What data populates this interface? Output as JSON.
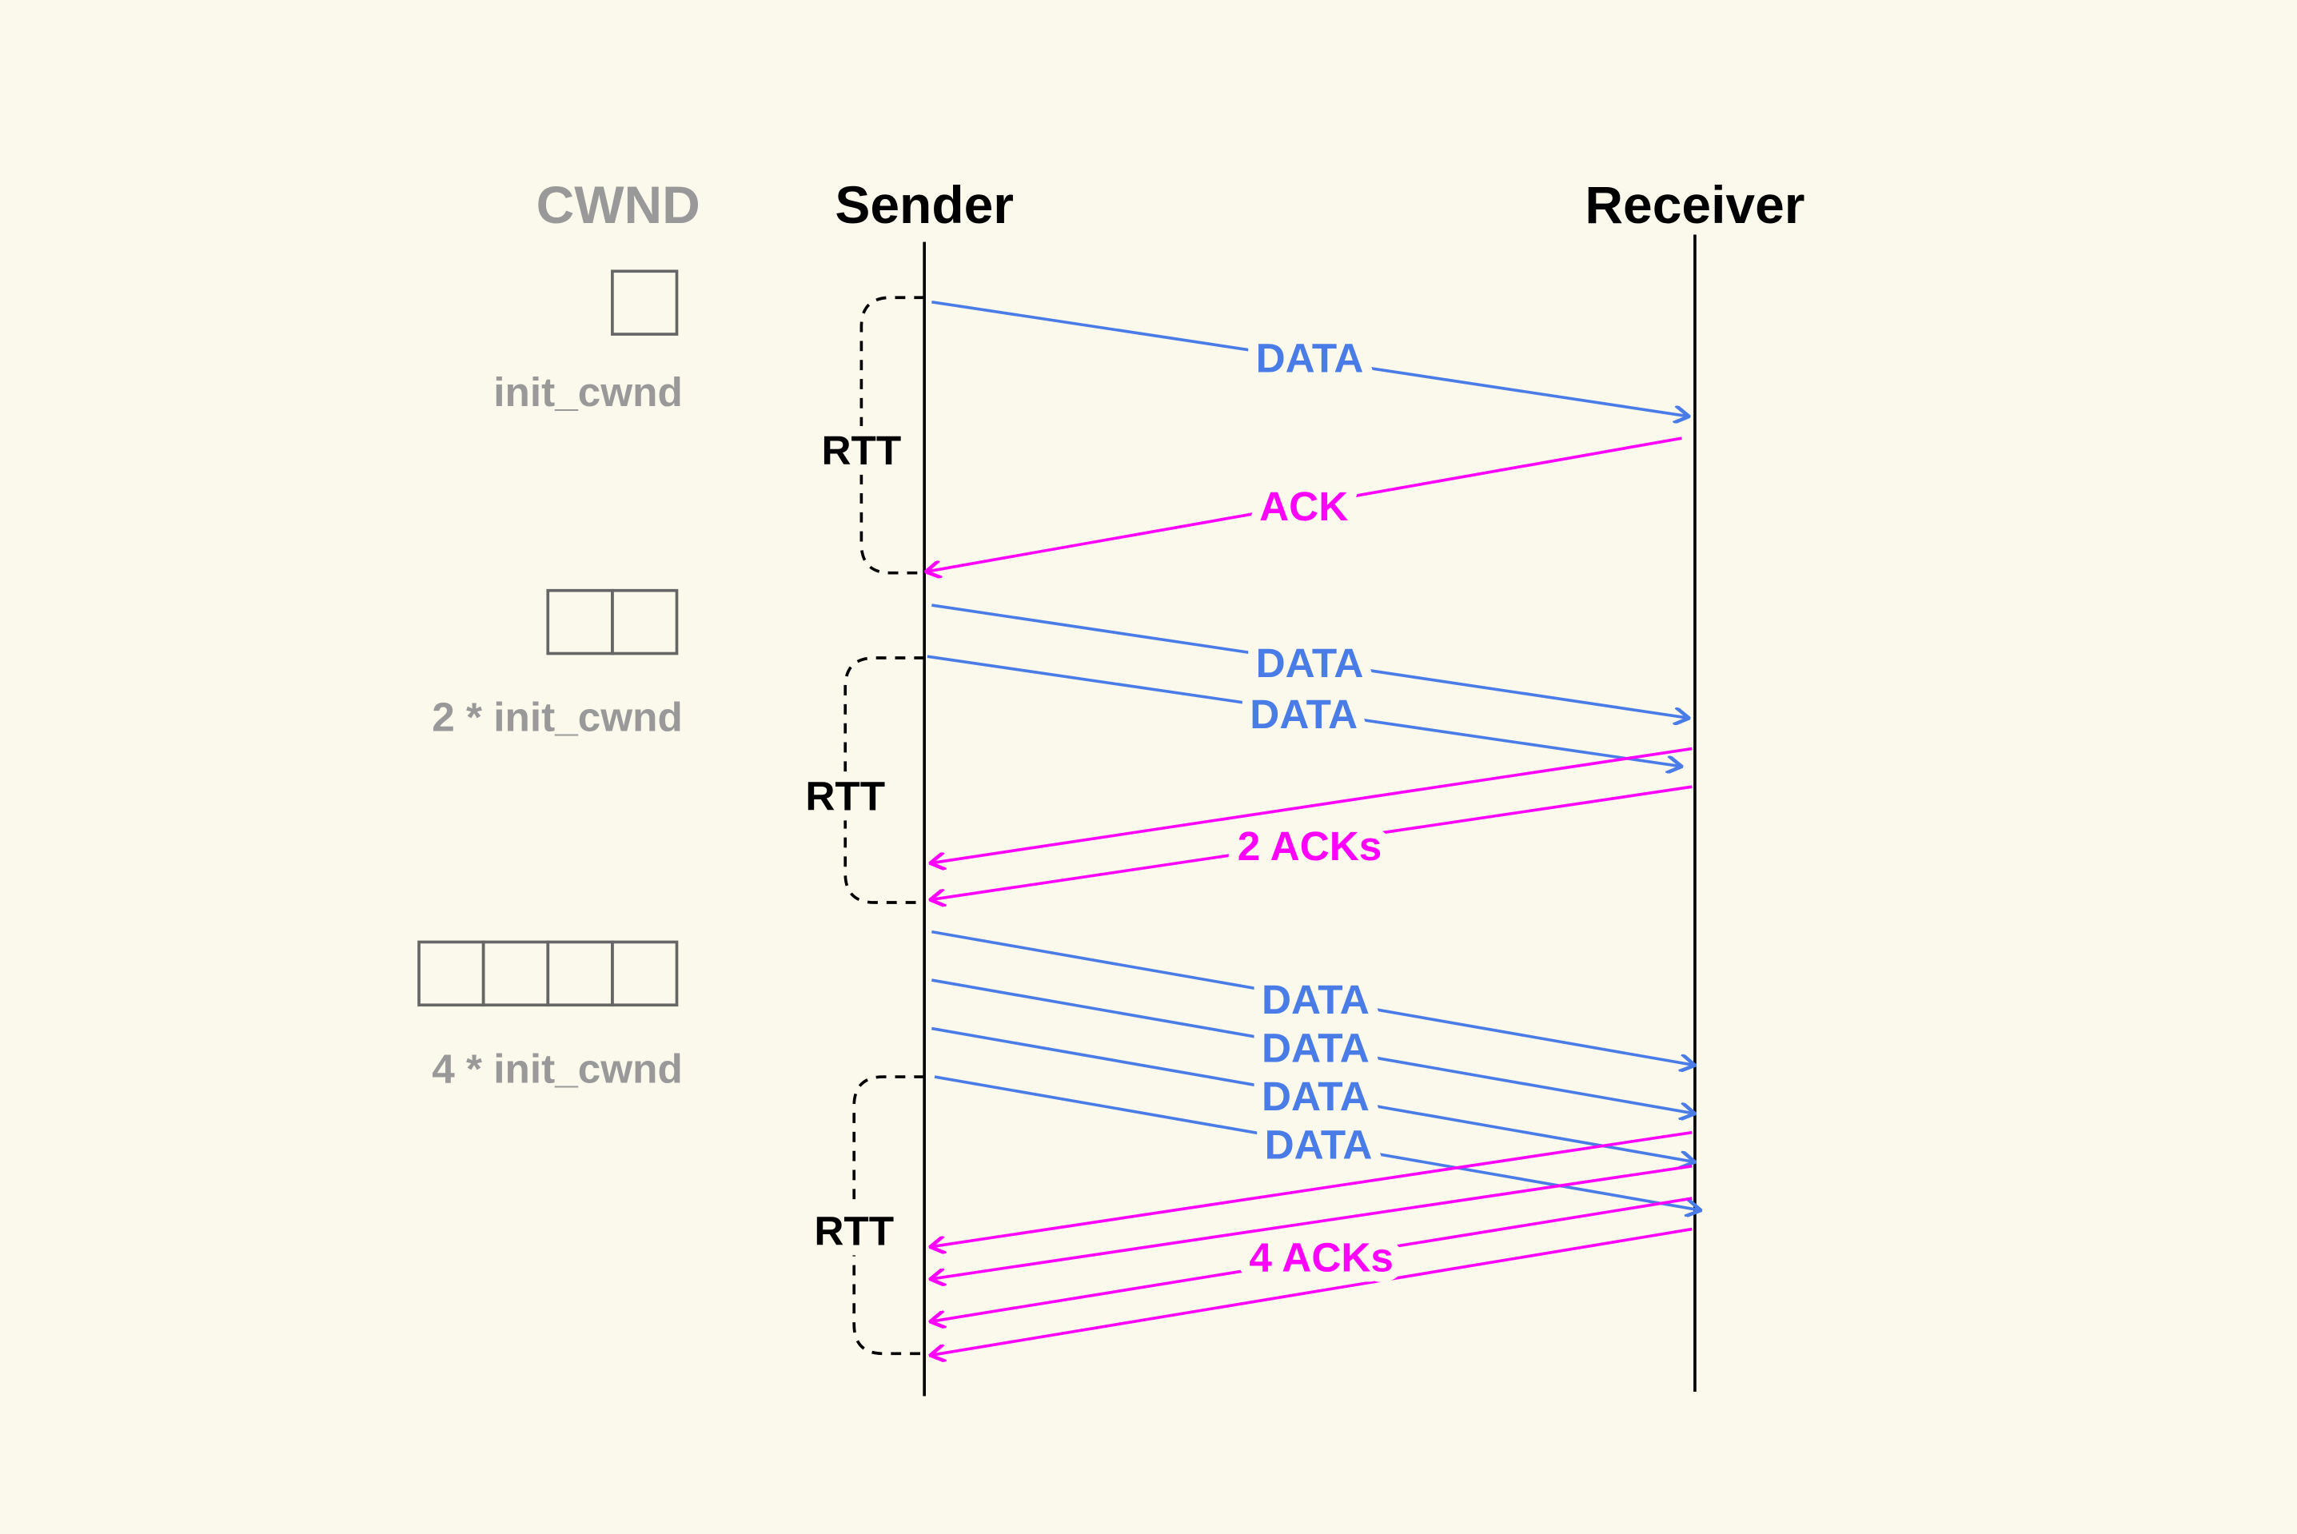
{
  "headers": {
    "cwnd": "CWND",
    "sender": "Sender",
    "receiver": "Receiver"
  },
  "cwnd_labels": [
    "init_cwnd",
    "2 * init_cwnd",
    "4 * init_cwnd"
  ],
  "cwnd_box_counts": [
    1,
    2,
    4
  ],
  "rtt_label": "RTT",
  "messages": {
    "data": "DATA",
    "ack": "ACK",
    "acks2": "2 ACKs",
    "acks4": "4 ACKs"
  },
  "colors": {
    "background": "#fbf9ec",
    "data": "#4a7ce8",
    "ack": "#ff00ff",
    "cwnd": "#999999",
    "line": "#000000"
  }
}
